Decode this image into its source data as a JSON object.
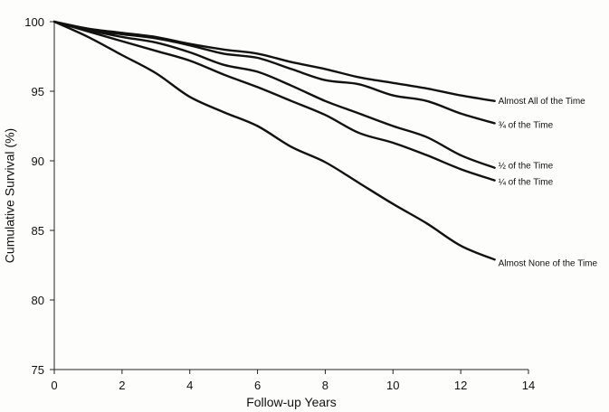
{
  "chart_data": {
    "type": "line",
    "title": "",
    "xlabel": "Follow-up Years",
    "ylabel": "Cumulative Survival  (%)",
    "xlim": [
      0,
      14
    ],
    "ylim": [
      75,
      100
    ],
    "xticks": [
      "0",
      "2",
      "4",
      "6",
      "8",
      "10",
      "12",
      "14"
    ],
    "yticks": [
      "75",
      "80",
      "85",
      "90",
      "95",
      "100"
    ],
    "grid": false,
    "legend": "direct labels at line ends (right)",
    "line_color": "#111111",
    "series": [
      {
        "name": "Almost All of the Time",
        "x": [
          0,
          1,
          2,
          3,
          4,
          5,
          6,
          7,
          8,
          9,
          10,
          11,
          12,
          13
        ],
        "y": [
          100,
          99.5,
          99.2,
          98.9,
          98.4,
          98.0,
          97.7,
          97.1,
          96.6,
          96.0,
          95.6,
          95.2,
          94.7,
          94.3
        ]
      },
      {
        "name": "¾ of the Time",
        "x": [
          0,
          1,
          2,
          3,
          4,
          5,
          6,
          7,
          8,
          9,
          10,
          11,
          12,
          13
        ],
        "y": [
          100,
          99.4,
          99.1,
          98.8,
          98.3,
          97.7,
          97.4,
          96.6,
          95.8,
          95.5,
          94.7,
          94.3,
          93.4,
          92.7
        ]
      },
      {
        "name": "½ of the Time",
        "x": [
          0,
          1,
          2,
          3,
          4,
          5,
          6,
          7,
          8,
          9,
          10,
          11,
          12,
          13
        ],
        "y": [
          100,
          99.4,
          98.9,
          98.5,
          97.8,
          96.9,
          96.4,
          95.4,
          94.3,
          93.4,
          92.5,
          91.7,
          90.4,
          89.5
        ]
      },
      {
        "name": "¼ of the Time",
        "x": [
          0,
          1,
          2,
          3,
          4,
          5,
          6,
          7,
          8,
          9,
          10,
          11,
          12,
          13
        ],
        "y": [
          100,
          99.3,
          98.6,
          97.9,
          97.2,
          96.2,
          95.3,
          94.3,
          93.3,
          92.0,
          91.3,
          90.4,
          89.4,
          88.6
        ]
      },
      {
        "name": "Almost None of the Time",
        "x": [
          0,
          1,
          2,
          3,
          4,
          5,
          6,
          7,
          8,
          9,
          10,
          11,
          12,
          13
        ],
        "y": [
          100,
          98.9,
          97.6,
          96.3,
          94.6,
          93.5,
          92.5,
          91.0,
          89.9,
          88.4,
          86.9,
          85.5,
          83.9,
          82.9
        ]
      }
    ]
  }
}
